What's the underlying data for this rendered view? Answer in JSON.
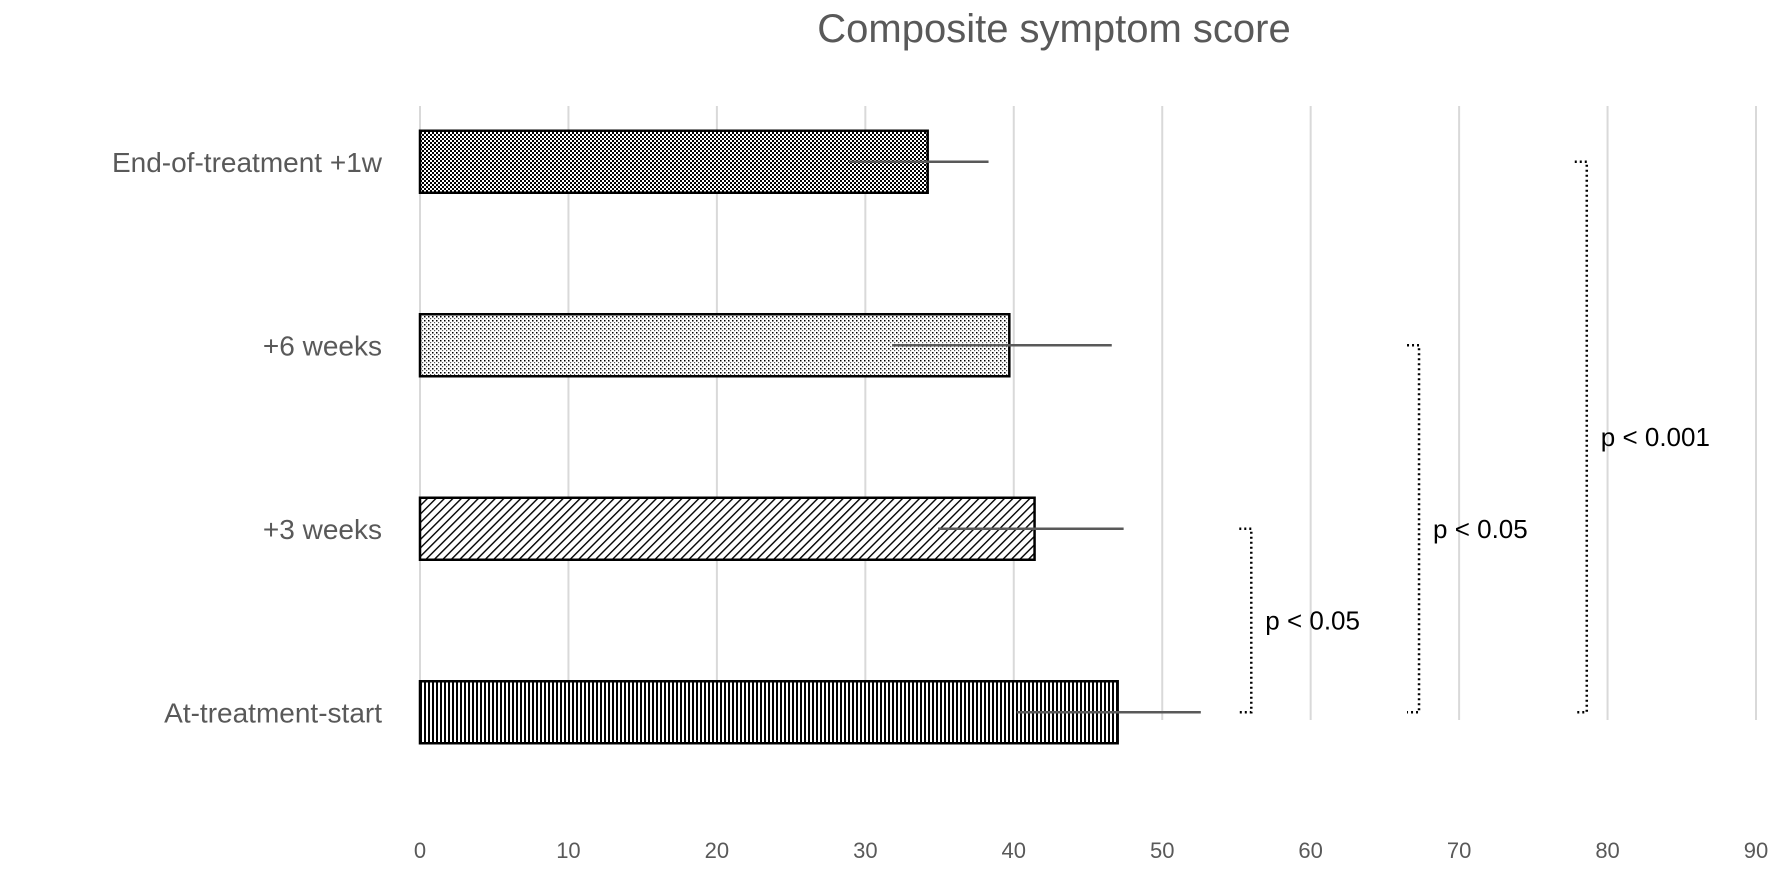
{
  "chart_data": {
    "type": "bar",
    "orientation": "horizontal",
    "title": "Composite symptom score",
    "xlabel": "",
    "ylabel": "",
    "categories": [
      "At-treatment-start",
      "+3 weeks",
      "+6 weeks",
      "End-of-treatment +1w"
    ],
    "values": [
      47,
      41.4,
      39.7,
      34.2
    ],
    "error_upper": [
      52.6,
      47.4,
      46.6,
      38.3
    ],
    "error_lower": [
      40.2,
      34.9,
      31.8,
      28.9
    ],
    "patterns": [
      "vertical-stripes",
      "diagonal-hatch",
      "fine-dots",
      "checker"
    ],
    "xlim": [
      0,
      90
    ],
    "xticks": [
      "0",
      "10",
      "20",
      "30",
      "40",
      "50",
      "60",
      "70",
      "80",
      "90"
    ],
    "grid": "vertical",
    "legend": "none",
    "significance": [
      {
        "from": "At-treatment-start",
        "to": "+3 weeks",
        "x": 56,
        "label": "p < 0.05"
      },
      {
        "from": "At-treatment-start",
        "to": "+6 weeks",
        "x": 67.3,
        "label": "p < 0.05"
      },
      {
        "from": "At-treatment-start",
        "to": "End-of-treatment +1w",
        "x": 78.6,
        "label": "p < 0.001"
      }
    ],
    "colors": {
      "bar_outline": "#000000",
      "grid": "#d9d9d9",
      "text": "#595959",
      "error_bar": "#595959"
    }
  }
}
